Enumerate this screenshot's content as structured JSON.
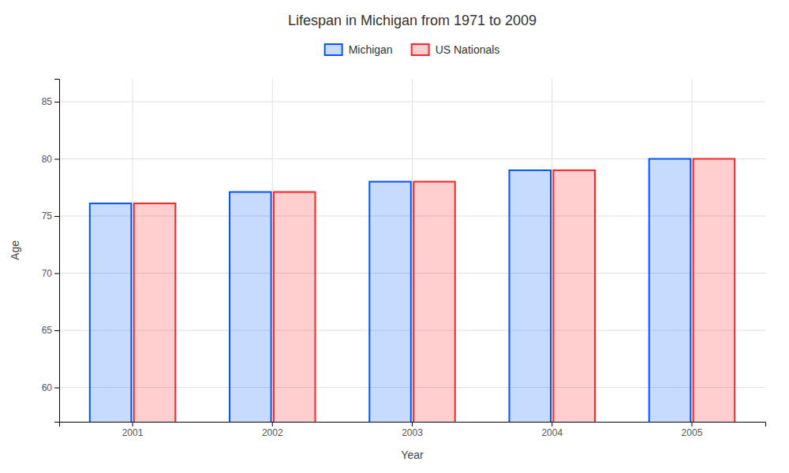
{
  "chart_data": {
    "type": "bar",
    "title": "Lifespan in Michigan from 1971 to 2009",
    "xlabel": "Year",
    "ylabel": "Age",
    "categories": [
      "2001",
      "2002",
      "2003",
      "2004",
      "2005"
    ],
    "series": [
      {
        "name": "Michigan",
        "color": "#0055ff",
        "values": [
          76.1,
          77.1,
          78.0,
          79.0,
          80.0
        ]
      },
      {
        "name": "US Nationals",
        "color": "#ff2222",
        "values": [
          76.1,
          77.1,
          78.0,
          79.0,
          80.0
        ]
      }
    ],
    "ylim": [
      57,
      87
    ],
    "yticks": [
      60,
      65,
      70,
      75,
      80,
      85
    ],
    "grid": true,
    "legend": "top"
  }
}
